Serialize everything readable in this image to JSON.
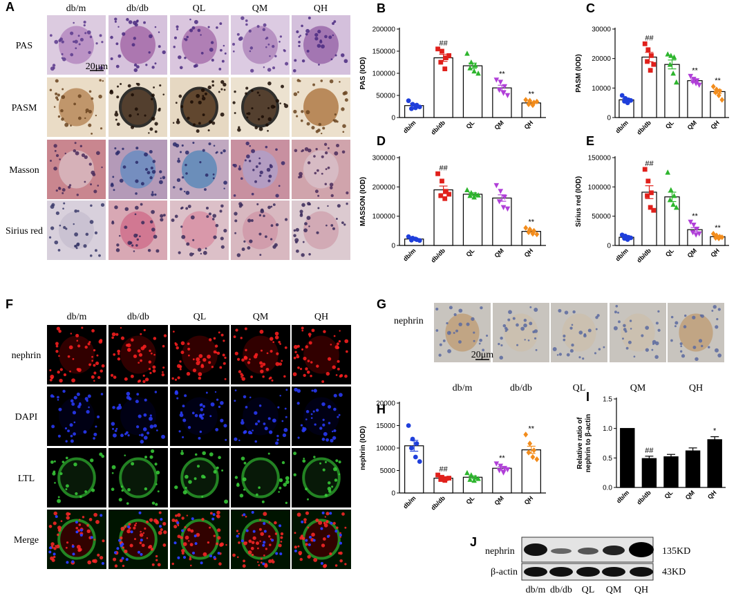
{
  "panel_A": {
    "label": "A",
    "columns": [
      "db/m",
      "db/db",
      "QL",
      "QM",
      "QH"
    ],
    "rows": [
      "PAS",
      "PASM",
      "Masson",
      "Sirius red"
    ],
    "scale_bar": "20μm"
  },
  "panel_F": {
    "label": "F",
    "columns": [
      "db/m",
      "db/db",
      "QL",
      "QM",
      "QH"
    ],
    "rows": [
      "nephrin",
      "DAPI",
      "LTL",
      "Merge"
    ]
  },
  "panel_G": {
    "label": "G",
    "row": "nephrin",
    "columns": [
      "db/m",
      "db/db",
      "QL",
      "QM",
      "QH"
    ],
    "scale_bar": "20μm"
  },
  "panel_J": {
    "label": "J",
    "rows": [
      "nephrin",
      "β-actin"
    ],
    "sizes": [
      "135KD",
      "43KD"
    ],
    "columns": [
      "db/m",
      "db/db",
      "QL",
      "QM",
      "QH"
    ]
  },
  "chart_data": [
    {
      "type": "bar",
      "panel": "B",
      "ylabel": "PAS (IOD)",
      "categories": [
        "db/m",
        "db/db",
        "QL",
        "QM",
        "QH"
      ],
      "values": [
        27000,
        135000,
        117000,
        67000,
        33000
      ],
      "errors": [
        4000,
        8000,
        6000,
        6000,
        2500
      ],
      "points": [
        [
          38000,
          30000,
          28000,
          20000,
          22000,
          24000
        ],
        [
          155000,
          150000,
          135000,
          125000,
          110000,
          140000
        ],
        [
          145000,
          125000,
          118000,
          112000,
          105000,
          100000
        ],
        [
          85000,
          80000,
          70000,
          62000,
          55000,
          50000
        ],
        [
          40000,
          38000,
          34000,
          30000,
          28000,
          36000
        ]
      ],
      "annotations": [
        null,
        "##",
        null,
        "**",
        "**"
      ],
      "colors": [
        "#1f3fdb",
        "#e0201b",
        "#2db52d",
        "#b03fd8",
        "#f28c1c"
      ],
      "markers": [
        "circle",
        "square",
        "triangle",
        "triangle-down",
        "diamond"
      ],
      "bar_color": "#ffffff",
      "ylim": [
        0,
        200000
      ],
      "yticks": [
        0,
        50000,
        100000,
        150000,
        200000
      ]
    },
    {
      "type": "bar",
      "panel": "C",
      "ylabel": "PASM (IOD)",
      "categories": [
        "db/m",
        "db/db",
        "QL",
        "QM",
        "QH"
      ],
      "values": [
        6000,
        20500,
        18000,
        12500,
        8800
      ],
      "errors": [
        400,
        1600,
        1500,
        600,
        600
      ],
      "points": [
        [
          7500,
          6500,
          6000,
          5500,
          5000,
          5800
        ],
        [
          25000,
          23000,
          21000,
          19000,
          16000,
          18000
        ],
        [
          21500,
          21000,
          20500,
          18000,
          15000,
          12000
        ],
        [
          14000,
          13000,
          12500,
          12000,
          11500,
          11000
        ],
        [
          10500,
          9500,
          9000,
          8500,
          7500,
          6000
        ]
      ],
      "annotations": [
        null,
        "##",
        null,
        "**",
        "**"
      ],
      "colors": [
        "#1f3fdb",
        "#e0201b",
        "#2db52d",
        "#b03fd8",
        "#f28c1c"
      ],
      "markers": [
        "circle",
        "square",
        "triangle",
        "triangle-down",
        "diamond"
      ],
      "bar_color": "#ffffff",
      "ylim": [
        0,
        30000
      ],
      "yticks": [
        0,
        10000,
        20000,
        30000
      ]
    },
    {
      "type": "bar",
      "panel": "D",
      "ylabel": "MASSON (IOD)",
      "categories": [
        "db/m",
        "db/db",
        "QL",
        "QM",
        "QH"
      ],
      "values": [
        22000,
        190000,
        175000,
        162000,
        48000
      ],
      "errors": [
        2500,
        13000,
        5000,
        11000,
        3500
      ],
      "points": [
        [
          30000,
          25000,
          20000,
          18000,
          22000,
          17000
        ],
        [
          245000,
          220000,
          185000,
          170000,
          160000,
          175000
        ],
        [
          190000,
          180000,
          175000,
          170000,
          165000,
          172000
        ],
        [
          205000,
          185000,
          165000,
          150000,
          130000,
          125000
        ],
        [
          60000,
          55000,
          50000,
          45000,
          40000,
          38000
        ]
      ],
      "annotations": [
        null,
        "##",
        null,
        null,
        "**"
      ],
      "colors": [
        "#1f3fdb",
        "#e0201b",
        "#2db52d",
        "#b03fd8",
        "#f28c1c"
      ],
      "markers": [
        "circle",
        "square",
        "triangle",
        "triangle-down",
        "diamond"
      ],
      "bar_color": "#ffffff",
      "ylim": [
        0,
        300000
      ],
      "yticks": [
        0,
        100000,
        200000,
        300000
      ]
    },
    {
      "type": "bar",
      "panel": "E",
      "ylabel": "Sirius red (IOD)",
      "categories": [
        "db/m",
        "db/db",
        "QL",
        "QM",
        "QH"
      ],
      "values": [
        14000,
        91000,
        83000,
        27000,
        15000
      ],
      "errors": [
        1500,
        11000,
        8000,
        3500,
        1200
      ],
      "points": [
        [
          18000,
          16000,
          14000,
          12000,
          10000,
          13000
        ],
        [
          130000,
          110000,
          90000,
          85000,
          65000,
          60000
        ],
        [
          125000,
          95000,
          85000,
          78000,
          70000,
          65000
        ],
        [
          40000,
          35000,
          28000,
          22000,
          18000,
          20000
        ],
        [
          20000,
          17000,
          15000,
          13000,
          12000,
          14000
        ]
      ],
      "annotations": [
        null,
        "##",
        null,
        "**",
        "**"
      ],
      "colors": [
        "#1f3fdb",
        "#e0201b",
        "#2db52d",
        "#b03fd8",
        "#f28c1c"
      ],
      "markers": [
        "circle",
        "square",
        "triangle",
        "triangle-down",
        "diamond"
      ],
      "bar_color": "#ffffff",
      "ylim": [
        0,
        150000
      ],
      "yticks": [
        0,
        50000,
        100000,
        150000
      ]
    },
    {
      "type": "bar",
      "panel": "H",
      "ylabel": "nephrin (IOD)",
      "categories": [
        "db/m",
        "db/db",
        "QL",
        "QM",
        "QH"
      ],
      "values": [
        10500,
        3300,
        3500,
        5500,
        9600
      ],
      "errors": [
        1200,
        200,
        300,
        400,
        800
      ],
      "points": [
        [
          15000,
          12000,
          11000,
          10000,
          8000,
          7000
        ],
        [
          4000,
          3500,
          3200,
          3000,
          2800,
          3300
        ],
        [
          4500,
          4000,
          3500,
          3000,
          2800,
          3200
        ],
        [
          6500,
          6000,
          5500,
          5000,
          4500,
          5200
        ],
        [
          13000,
          11000,
          9500,
          9000,
          8000,
          7500
        ]
      ],
      "annotations": [
        null,
        "##",
        null,
        "**",
        "**"
      ],
      "colors": [
        "#1f3fdb",
        "#e0201b",
        "#2db52d",
        "#b03fd8",
        "#f28c1c"
      ],
      "markers": [
        "circle",
        "square",
        "triangle",
        "triangle-down",
        "diamond"
      ],
      "bar_color": "#ffffff",
      "ylim": [
        0,
        20000
      ],
      "yticks": [
        0,
        5000,
        10000,
        15000,
        20000
      ]
    },
    {
      "type": "bar",
      "panel": "I",
      "ylabel": [
        "Relative ratio of",
        "nephrin to β-actin"
      ],
      "categories": [
        "db/m",
        "db/db",
        "QL",
        "QM",
        "QH"
      ],
      "values": [
        1.0,
        0.49,
        0.52,
        0.62,
        0.81
      ],
      "errors": [
        0,
        0.04,
        0.04,
        0.05,
        0.05
      ],
      "annotations": [
        null,
        "##",
        null,
        null,
        "*"
      ],
      "bar_color": "#000000",
      "ylim": [
        0,
        1.5
      ],
      "yticks": [
        {
          "value": 0,
          "label": "0.0"
        },
        0.5,
        {
          "value": 1,
          "label": "1.0"
        },
        1.5
      ]
    }
  ]
}
